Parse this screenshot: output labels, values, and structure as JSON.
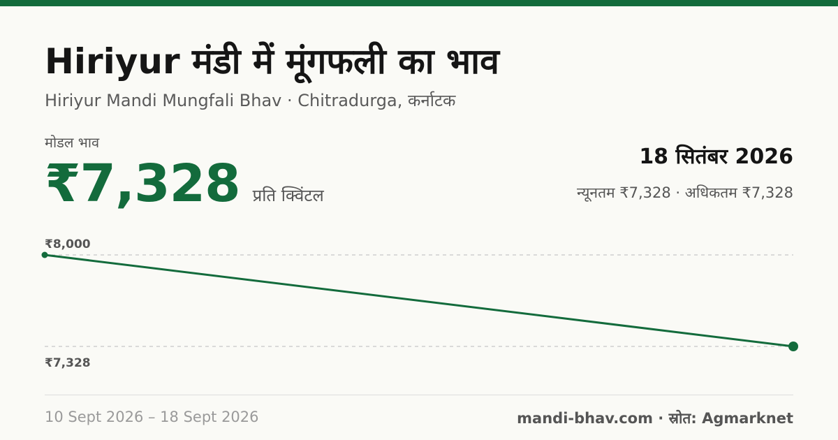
{
  "theme": {
    "accent": "#136b3c",
    "grid": "#c8c8c8",
    "text_muted": "#555555"
  },
  "header": {
    "title": "Hiriyur मंडी में मूंगफली का भाव",
    "subtitle": "Hiriyur Mandi Mungfali Bhav · Chitradurga, कर्नाटक"
  },
  "price": {
    "label": "मोडल भाव",
    "value": "₹7,328",
    "unit": "प्रति क्विंटल"
  },
  "date": "18 सितंबर 2026",
  "range_text": "न्यूनतम ₹7,328 · अधिकतम ₹7,328",
  "chart_data": {
    "type": "line",
    "x": [
      "2026-09-10",
      "2026-09-18"
    ],
    "series": [
      {
        "values": [
          8000,
          7328
        ]
      }
    ],
    "y_ticks": [
      {
        "value": 8000,
        "label": "₹8,000"
      },
      {
        "value": 7328,
        "label": "₹7,328"
      }
    ],
    "ylim": [
      7328,
      8000
    ],
    "grid": true
  },
  "footer": {
    "date_range": "10 Sept 2026 – 18 Sept 2026",
    "source": "mandi-bhav.com · स्रोत: Agmarknet"
  }
}
